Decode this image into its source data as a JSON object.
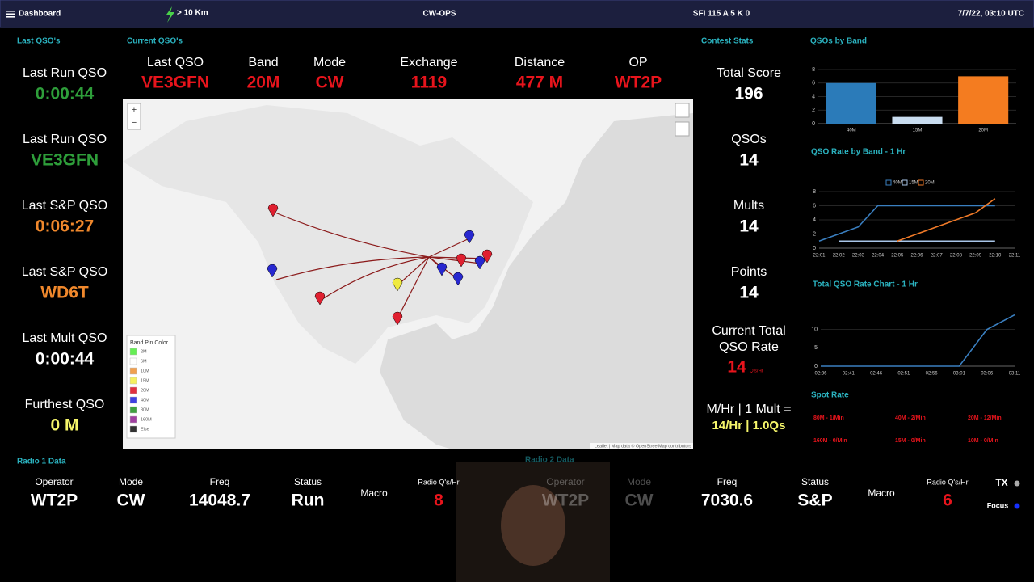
{
  "header": {
    "menu": "Dashboard",
    "distance": "> 10 Km",
    "title": "CW-OPS",
    "solar": "SFI 115 A 5 K 0",
    "time": "7/7/22, 03:10 UTC"
  },
  "last_qsos": {
    "title": "Last QSO's",
    "items": [
      {
        "label": "Last Run QSO",
        "value": "0:00:44",
        "color": "#2e9e3a"
      },
      {
        "label": "Last Run QSO",
        "value": "VE3GFN",
        "color": "#2e9e3a"
      },
      {
        "label": "Last S&P QSO",
        "value": "0:06:27",
        "color": "#f0882c"
      },
      {
        "label": "Last S&P QSO",
        "value": "WD6T",
        "color": "#f0882c"
      },
      {
        "label": "Last Mult QSO",
        "value": "0:00:44",
        "color": "#ffffff"
      },
      {
        "label": "Furthest QSO",
        "value": "0 M",
        "color": "#f5f56a"
      }
    ]
  },
  "current_qso": {
    "title": "Current QSO's",
    "columns": [
      {
        "label": "Last QSO",
        "value": "VE3GFN"
      },
      {
        "label": "Band",
        "value": "20M"
      },
      {
        "label": "Mode",
        "value": "CW"
      },
      {
        "label": "Exchange",
        "value": "1119"
      },
      {
        "label": "Distance",
        "value": "477 M"
      },
      {
        "label": "OP",
        "value": "WT2P"
      }
    ]
  },
  "map": {
    "legend_title": "Band Pin Color",
    "legend": [
      {
        "label": "2M",
        "color": "#66ee55"
      },
      {
        "label": "6M",
        "color": "#ffffff"
      },
      {
        "label": "10M",
        "color": "#f0a050"
      },
      {
        "label": "15M",
        "color": "#f5f060"
      },
      {
        "label": "20M",
        "color": "#e03040"
      },
      {
        "label": "40M",
        "color": "#4040e0"
      },
      {
        "label": "80M",
        "color": "#40a040"
      },
      {
        "label": "160M",
        "color": "#a040a0"
      },
      {
        "label": "Else",
        "color": "#333333"
      }
    ],
    "attribution": "Leaflet | Map data © OpenStreetMap contributors"
  },
  "contest_stats": {
    "title": "Contest Stats",
    "items": [
      {
        "label": "Total Score",
        "value": "196"
      },
      {
        "label": "QSOs",
        "value": "14"
      },
      {
        "label": "Mults",
        "value": "14"
      },
      {
        "label": "Points",
        "value": "14"
      }
    ],
    "rate_label": [
      "Current Total",
      "QSO Rate"
    ],
    "rate_value": "14",
    "rate_unit": "Q's/Hr",
    "mult_label": "M/Hr | 1 Mult =",
    "mult_value": "14/Hr | 1.0Qs"
  },
  "band_chart": {
    "type": "bar",
    "title": "QSOs by Band",
    "categories": [
      "40M",
      "15M",
      "20M"
    ],
    "values": [
      6,
      1,
      7
    ],
    "colors": [
      "#2b7bb9",
      "#c9ddf0",
      "#f47c20"
    ],
    "ylim": [
      0,
      8
    ],
    "yticks": [
      0,
      2,
      4,
      6,
      8
    ],
    "grid": true
  },
  "rate_chart": {
    "type": "line",
    "title": "QSO Rate by Band - 1 Hr",
    "categories": [
      "22:01",
      "22:02",
      "22:03",
      "22:04",
      "22:05",
      "22:06",
      "22:07",
      "22:08",
      "22:09",
      "22:10",
      "22:11"
    ],
    "series": [
      {
        "name": "40M",
        "color": "#3a7fc0",
        "values": [
          1,
          2,
          3,
          6,
          6,
          6,
          6,
          6,
          6,
          6,
          null
        ]
      },
      {
        "name": "15M",
        "color": "#a9c6e8",
        "values": [
          null,
          1,
          1,
          1,
          1,
          1,
          1,
          1,
          1,
          1,
          null
        ]
      },
      {
        "name": "20M",
        "color": "#f07a28",
        "values": [
          null,
          null,
          null,
          null,
          1,
          2,
          3,
          4,
          5,
          7,
          null
        ]
      }
    ],
    "ylim": [
      0,
      8
    ],
    "yticks": [
      0,
      2,
      4,
      6,
      8
    ],
    "grid": true
  },
  "total_chart": {
    "type": "line",
    "title": "Total QSO Rate Chart - 1 Hr",
    "categories": [
      "02:36",
      "02:41",
      "02:46",
      "02:51",
      "02:56",
      "03:01",
      "03:06",
      "03:11"
    ],
    "values": [
      0,
      0,
      0,
      0,
      0,
      0,
      10,
      14
    ],
    "color": "#3a7fc0",
    "ylim": [
      0,
      15
    ],
    "yticks": [
      0,
      5,
      10
    ],
    "grid": true
  },
  "spot_rate": {
    "title": "Spot Rate",
    "items": [
      "80M - 1/Min",
      "40M - 2/Min",
      "20M - 12/Min",
      "160M - 0/Min",
      "15M - 0/Min",
      "10M - 0/Min"
    ]
  },
  "radio1": {
    "title": "Radio 1 Data",
    "fields": [
      {
        "label": "Operator",
        "value": "WT2P"
      },
      {
        "label": "Mode",
        "value": "CW"
      },
      {
        "label": "Freq",
        "value": "14048.7"
      },
      {
        "label": "Status",
        "value": "Run"
      },
      {
        "label": "Macro"
      },
      {
        "label": "Radio Q's/Hr",
        "value": "8"
      }
    ]
  },
  "radio2": {
    "title": "Radio 2 Data",
    "fields": [
      {
        "label": "Operator",
        "value": "WT2P"
      },
      {
        "label": "Mode",
        "value": "CW"
      },
      {
        "label": "Freq",
        "value": "7030.6"
      },
      {
        "label": "Status",
        "value": "S&P"
      },
      {
        "label": "Macro"
      },
      {
        "label": "Radio Q's/Hr",
        "value": "6"
      }
    ],
    "tx": "TX",
    "focus": "Focus"
  }
}
